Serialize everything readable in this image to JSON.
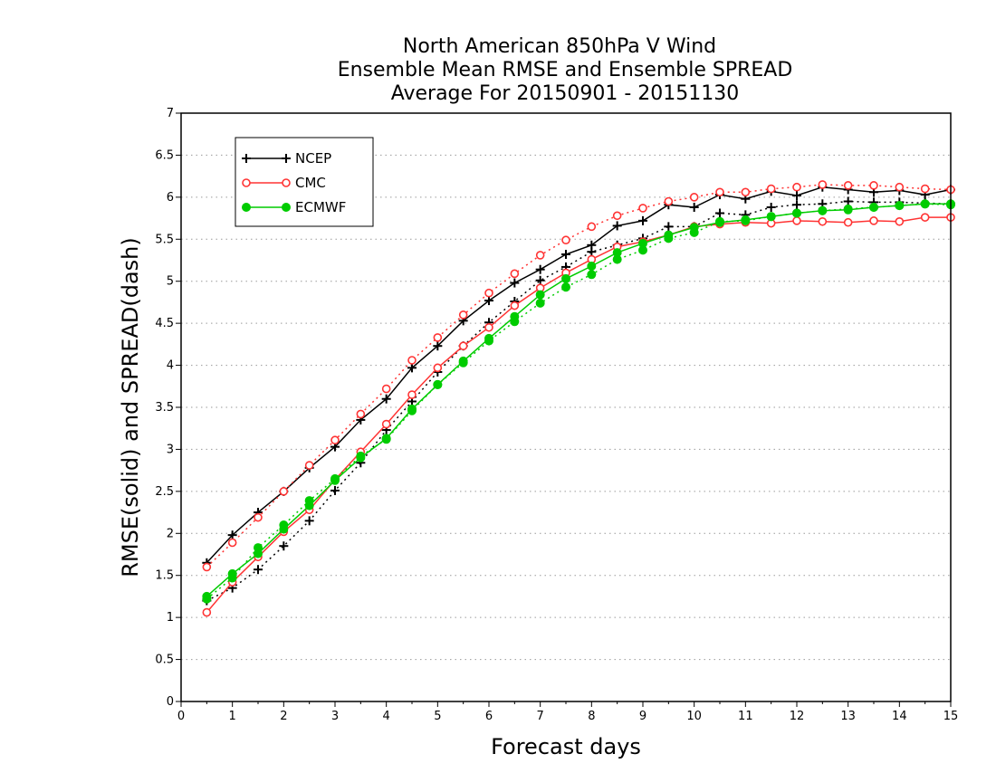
{
  "chart_data": {
    "type": "line",
    "title": [
      "North American 850hPa V Wind",
      "Ensemble Mean RMSE and Ensemble SPREAD",
      "Average For 20150901 - 20151130"
    ],
    "xlabel": "Forecast days",
    "ylabel": "RMSE(solid) and SPREAD(dash)",
    "xlim": [
      0,
      15
    ],
    "ylim": [
      0,
      7
    ],
    "x_ticks": [
      "0",
      "1",
      "2",
      "3",
      "4",
      "5",
      "6",
      "7",
      "8",
      "9",
      "10",
      "11",
      "12",
      "13",
      "14",
      "15"
    ],
    "y_ticks": [
      "0",
      "0.5",
      "1",
      "1.5",
      "2",
      "2.5",
      "3",
      "3.5",
      "4",
      "4.5",
      "5",
      "5.5",
      "6",
      "6.5",
      "7"
    ],
    "grid": "horizontal dotted",
    "legend_position": "top-left",
    "x": [
      0.5,
      1,
      1.5,
      2,
      2.5,
      3,
      3.5,
      4,
      4.5,
      5,
      5.5,
      6,
      6.5,
      7,
      7.5,
      8,
      8.5,
      9,
      9.5,
      10,
      10.5,
      11,
      11.5,
      12,
      12.5,
      13,
      13.5,
      14,
      14.5,
      15
    ],
    "series": [
      {
        "name": "NCEP",
        "metric": "RMSE",
        "line": "solid",
        "marker": "plus",
        "color": "#000000",
        "values": [
          1.65,
          1.98,
          2.25,
          2.5,
          2.78,
          3.03,
          3.35,
          3.6,
          3.97,
          4.23,
          4.53,
          4.77,
          4.98,
          5.14,
          5.32,
          5.43,
          5.66,
          5.72,
          5.91,
          5.88,
          6.03,
          5.98,
          6.07,
          6.02,
          6.12,
          6.09,
          6.06,
          6.08,
          6.03,
          6.09
        ]
      },
      {
        "name": "NCEP",
        "metric": "SPREAD",
        "line": "dash",
        "marker": "plus",
        "color": "#000000",
        "values": [
          1.2,
          1.35,
          1.57,
          1.85,
          2.15,
          2.51,
          2.84,
          3.23,
          3.57,
          3.92,
          4.23,
          4.51,
          4.76,
          5.01,
          5.17,
          5.35,
          5.43,
          5.51,
          5.65,
          5.65,
          5.81,
          5.79,
          5.88,
          5.91,
          5.92,
          5.95,
          5.94,
          5.94,
          5.93,
          5.92
        ]
      },
      {
        "name": "CMC",
        "metric": "RMSE",
        "line": "solid",
        "marker": "circle",
        "color": "#ff3333",
        "values": [
          1.06,
          1.42,
          1.72,
          2.02,
          2.28,
          2.64,
          2.97,
          3.3,
          3.65,
          3.97,
          4.23,
          4.45,
          4.71,
          4.92,
          5.1,
          5.26,
          5.41,
          5.47,
          5.55,
          5.65,
          5.68,
          5.7,
          5.69,
          5.72,
          5.71,
          5.7,
          5.72,
          5.71,
          5.76,
          5.76
        ]
      },
      {
        "name": "CMC",
        "metric": "SPREAD",
        "line": "dash",
        "marker": "circle",
        "color": "#ff3333",
        "values": [
          1.6,
          1.89,
          2.19,
          2.5,
          2.81,
          3.11,
          3.42,
          3.72,
          4.06,
          4.33,
          4.6,
          4.86,
          5.09,
          5.31,
          5.49,
          5.65,
          5.78,
          5.87,
          5.95,
          6.0,
          6.06,
          6.06,
          6.1,
          6.12,
          6.15,
          6.14,
          6.14,
          6.12,
          6.1,
          6.09
        ]
      },
      {
        "name": "ECMWF",
        "metric": "RMSE",
        "line": "solid",
        "marker": "dot",
        "color": "#00cc00",
        "values": [
          1.25,
          1.52,
          1.76,
          2.05,
          2.33,
          2.63,
          2.9,
          3.13,
          3.48,
          3.77,
          4.05,
          4.32,
          4.58,
          4.84,
          5.03,
          5.18,
          5.34,
          5.45,
          5.55,
          5.64,
          5.7,
          5.73,
          5.77,
          5.81,
          5.84,
          5.85,
          5.88,
          5.9,
          5.92,
          5.92
        ]
      },
      {
        "name": "ECMWF",
        "metric": "SPREAD",
        "line": "dash",
        "marker": "dot",
        "color": "#00cc00",
        "values": [
          1.22,
          1.47,
          1.83,
          2.1,
          2.39,
          2.65,
          2.92,
          3.12,
          3.46,
          3.77,
          4.03,
          4.29,
          4.52,
          4.74,
          4.93,
          5.08,
          5.26,
          5.37,
          5.51,
          5.58,
          5.71,
          5.72,
          5.77,
          5.81,
          5.84,
          5.86,
          5.88,
          5.9,
          5.92,
          5.91
        ]
      }
    ],
    "legend": [
      {
        "label": "NCEP",
        "color": "#000000",
        "marker": "plus"
      },
      {
        "label": "CMC",
        "color": "#ff3333",
        "marker": "circle"
      },
      {
        "label": "ECMWF",
        "color": "#00cc00",
        "marker": "dot"
      }
    ]
  }
}
